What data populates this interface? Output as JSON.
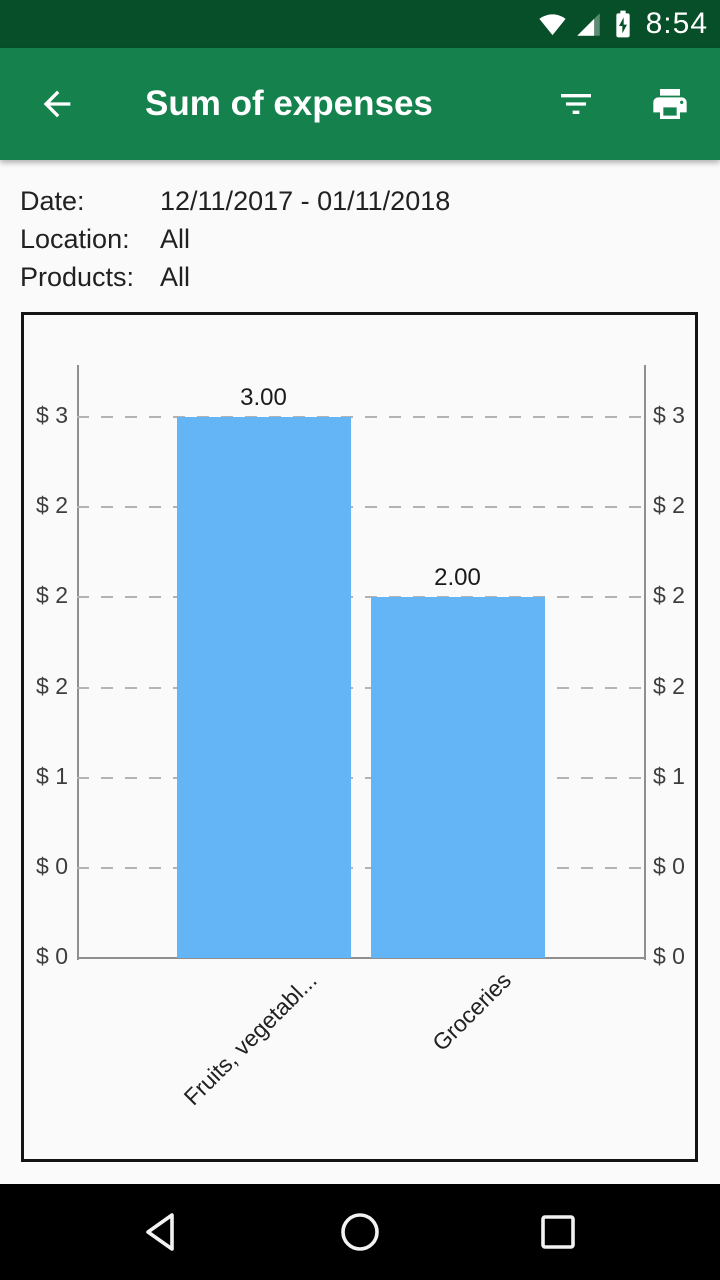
{
  "colors": {
    "status_bar_bg": "#064f29",
    "app_bar_bg": "#15824d",
    "page_bg": "#fafafa",
    "nav_bar_bg": "#000000",
    "bar_fill": "#64b5f6",
    "grid_line": "#b3b3b3",
    "axis_line": "#8f8f8f",
    "text_primary": "#212121"
  },
  "status_bar": {
    "time": "8:54"
  },
  "app_bar": {
    "title": "Sum of expenses"
  },
  "filter_summary": {
    "rows": [
      {
        "label": "Date:",
        "value": "12/11/2017 - 01/11/2018"
      },
      {
        "label": "Location:",
        "value": "All"
      },
      {
        "label": "Products:",
        "value": "All"
      }
    ]
  },
  "chart_data": {
    "type": "bar",
    "title": "",
    "categories": [
      "Fruits, vegetabl...",
      "Groceries"
    ],
    "values": [
      3.0,
      2.0
    ],
    "value_labels": [
      "3.00",
      "2.00"
    ],
    "currency_prefix": "$",
    "y_axis": {
      "min": 0,
      "max": 3,
      "tick_step": 0.5,
      "tick_count": 7,
      "mirrored": true
    },
    "tick_labels_left": [
      "$ 3",
      "$ 2",
      "$ 2",
      "$ 2",
      "$ 1",
      "$ 0",
      "$ 0"
    ],
    "tick_labels_right": [
      "$ 3",
      "$ 2",
      "$ 2",
      "$ 2",
      "$ 1",
      "$ 0",
      "$ 0"
    ],
    "grid": "dashed",
    "legend": "none",
    "x_label_rotation_deg": -45
  },
  "nav_bar": {
    "buttons": [
      "back",
      "home",
      "recents"
    ]
  }
}
